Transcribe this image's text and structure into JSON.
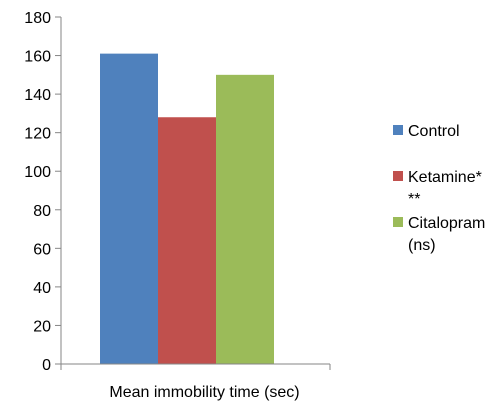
{
  "chart_data": {
    "type": "bar",
    "title": "",
    "xlabel": "Mean immobility time (sec)",
    "ylabel": "",
    "categories": [
      "Mean immobility time (sec)"
    ],
    "series": [
      {
        "name": "Control",
        "legend_lines": [
          "Control"
        ],
        "values": [
          161
        ],
        "color": "#4F81BD"
      },
      {
        "name": "Ketamine***",
        "legend_lines": [
          "Ketamine*",
          "**"
        ],
        "values": [
          128
        ],
        "color": "#C0504D"
      },
      {
        "name": "Citalopram (ns)",
        "legend_lines": [
          "Citalopram",
          "(ns)"
        ],
        "values": [
          150
        ],
        "color": "#9BBB59"
      }
    ],
    "ylim": [
      0,
      180
    ],
    "yticks": [
      0,
      20,
      40,
      60,
      80,
      100,
      120,
      140,
      160,
      180
    ],
    "grid": false,
    "legend_position": "right"
  }
}
